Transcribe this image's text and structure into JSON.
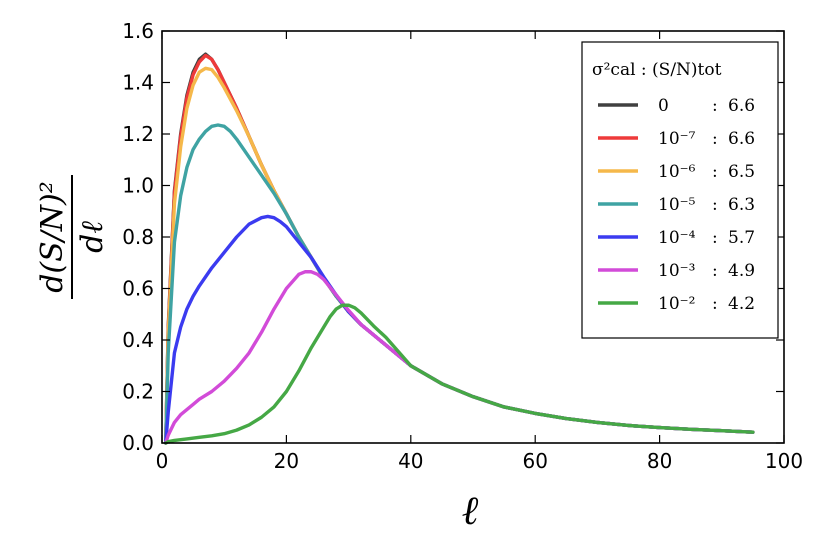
{
  "chart_data": {
    "type": "line",
    "xlabel": "ℓ",
    "ylabel_num": "d(S/N)²",
    "ylabel_den": "dℓ",
    "xlim": [
      0,
      100
    ],
    "ylim": [
      0,
      1.6
    ],
    "xticks": [
      0,
      20,
      40,
      60,
      80,
      100
    ],
    "yticks": [
      0.0,
      0.2,
      0.4,
      0.6,
      0.8,
      1.0,
      1.2,
      1.4,
      1.6
    ],
    "xtick_labels": [
      "0",
      "20",
      "40",
      "60",
      "80",
      "100"
    ],
    "ytick_labels": [
      "0.0",
      "0.2",
      "0.4",
      "0.6",
      "0.8",
      "1.0",
      "1.2",
      "1.4",
      "1.6"
    ],
    "grid": false,
    "legend": {
      "placement": "top-right",
      "title": "σ²cal : (S/N)tot",
      "entries": [
        {
          "sigma": "0",
          "sep": ":",
          "value": "6.6",
          "color": "#404040"
        },
        {
          "sigma": "10⁻⁷",
          "sep": ":",
          "value": "6.6",
          "color": "#ee3a3a"
        },
        {
          "sigma": "10⁻⁶",
          "sep": ":",
          "value": "6.5",
          "color": "#f5b84a"
        },
        {
          "sigma": "10⁻⁵",
          "sep": ":",
          "value": "6.3",
          "color": "#3fa3a3"
        },
        {
          "sigma": "10⁻⁴",
          "sep": ":",
          "value": "5.7",
          "color": "#3b3bf0"
        },
        {
          "sigma": "10⁻³",
          "sep": ":",
          "value": "4.9",
          "color": "#d24bd8"
        },
        {
          "sigma": "10⁻²",
          "sep": ":",
          "value": "4.2",
          "color": "#45a845"
        }
      ]
    },
    "series": [
      {
        "name": "0",
        "color": "#404040",
        "x": [
          0.6,
          1,
          2,
          3,
          4,
          5,
          6,
          7,
          8,
          9,
          10,
          12,
          14,
          16,
          18,
          20,
          22,
          24,
          26,
          28,
          30,
          32,
          35,
          40,
          45,
          50,
          55,
          60,
          65,
          70,
          75,
          80,
          85,
          90,
          95
        ],
        "y": [
          0.0,
          0.45,
          0.98,
          1.2,
          1.35,
          1.44,
          1.49,
          1.51,
          1.49,
          1.45,
          1.4,
          1.3,
          1.19,
          1.08,
          0.98,
          0.89,
          0.8,
          0.72,
          0.64,
          0.57,
          0.51,
          0.46,
          0.4,
          0.3,
          0.23,
          0.18,
          0.14,
          0.115,
          0.095,
          0.08,
          0.068,
          0.06,
          0.053,
          0.048,
          0.042
        ]
      },
      {
        "name": "10⁻⁷",
        "color": "#ee3a3a",
        "x": [
          0.6,
          1,
          2,
          3,
          4,
          5,
          6,
          7,
          8,
          9,
          10,
          12,
          14,
          16,
          18,
          20,
          22,
          24,
          26,
          28,
          30,
          32,
          35,
          40,
          45,
          50,
          55,
          60,
          65,
          70,
          75,
          80,
          85,
          90,
          95
        ],
        "y": [
          0.0,
          0.44,
          0.97,
          1.19,
          1.34,
          1.43,
          1.48,
          1.505,
          1.49,
          1.45,
          1.4,
          1.3,
          1.19,
          1.08,
          0.98,
          0.89,
          0.8,
          0.72,
          0.64,
          0.57,
          0.51,
          0.46,
          0.4,
          0.3,
          0.23,
          0.18,
          0.14,
          0.115,
          0.095,
          0.08,
          0.068,
          0.06,
          0.053,
          0.048,
          0.042
        ]
      },
      {
        "name": "10⁻⁶",
        "color": "#f5b84a",
        "x": [
          0.6,
          1,
          2,
          3,
          4,
          5,
          6,
          7,
          8,
          9,
          10,
          12,
          14,
          16,
          18,
          20,
          22,
          24,
          26,
          28,
          30,
          32,
          35,
          40,
          45,
          50,
          55,
          60,
          65,
          70,
          75,
          80,
          85,
          90,
          95
        ],
        "y": [
          0.0,
          0.42,
          0.93,
          1.15,
          1.3,
          1.39,
          1.44,
          1.455,
          1.45,
          1.42,
          1.38,
          1.29,
          1.19,
          1.08,
          0.98,
          0.89,
          0.8,
          0.72,
          0.64,
          0.57,
          0.51,
          0.46,
          0.4,
          0.3,
          0.23,
          0.18,
          0.14,
          0.115,
          0.095,
          0.08,
          0.068,
          0.06,
          0.053,
          0.048,
          0.042
        ]
      },
      {
        "name": "10⁻⁵",
        "color": "#3fa3a3",
        "x": [
          0.6,
          1,
          2,
          3,
          4,
          5,
          6,
          7,
          8,
          9,
          10,
          11,
          12,
          14,
          16,
          18,
          20,
          22,
          24,
          26,
          28,
          30,
          32,
          35,
          40,
          45,
          50,
          55,
          60,
          65,
          70,
          75,
          80,
          85,
          90,
          95
        ],
        "y": [
          0.0,
          0.35,
          0.78,
          0.96,
          1.07,
          1.14,
          1.18,
          1.21,
          1.23,
          1.235,
          1.23,
          1.21,
          1.18,
          1.11,
          1.04,
          0.97,
          0.89,
          0.8,
          0.72,
          0.64,
          0.57,
          0.51,
          0.46,
          0.4,
          0.3,
          0.23,
          0.18,
          0.14,
          0.115,
          0.095,
          0.08,
          0.068,
          0.06,
          0.053,
          0.048,
          0.042
        ]
      },
      {
        "name": "10⁻⁴",
        "color": "#3b3bf0",
        "x": [
          0.6,
          1,
          2,
          3,
          4,
          5,
          6,
          8,
          10,
          12,
          14,
          16,
          17,
          18,
          19,
          20,
          22,
          24,
          26,
          28,
          30,
          32,
          35,
          40,
          45,
          50,
          55,
          60,
          65,
          70,
          75,
          80,
          85,
          90,
          95
        ],
        "y": [
          0.0,
          0.12,
          0.35,
          0.45,
          0.52,
          0.57,
          0.61,
          0.68,
          0.74,
          0.8,
          0.85,
          0.875,
          0.88,
          0.875,
          0.86,
          0.84,
          0.78,
          0.72,
          0.645,
          0.575,
          0.51,
          0.46,
          0.4,
          0.3,
          0.23,
          0.18,
          0.14,
          0.115,
          0.095,
          0.08,
          0.068,
          0.06,
          0.053,
          0.048,
          0.042
        ]
      },
      {
        "name": "10⁻³",
        "color": "#d24bd8",
        "x": [
          0.6,
          1,
          2,
          3,
          4,
          5,
          6,
          8,
          10,
          12,
          14,
          16,
          18,
          20,
          22,
          23,
          24,
          25,
          26,
          28,
          30,
          32,
          35,
          40,
          45,
          50,
          55,
          60,
          65,
          70,
          75,
          80,
          85,
          90,
          95
        ],
        "y": [
          0.0,
          0.03,
          0.08,
          0.11,
          0.13,
          0.15,
          0.17,
          0.2,
          0.24,
          0.29,
          0.35,
          0.43,
          0.52,
          0.6,
          0.655,
          0.665,
          0.665,
          0.655,
          0.635,
          0.575,
          0.515,
          0.46,
          0.4,
          0.3,
          0.23,
          0.18,
          0.14,
          0.115,
          0.095,
          0.08,
          0.068,
          0.06,
          0.053,
          0.048,
          0.042
        ]
      },
      {
        "name": "10⁻²",
        "color": "#45a845",
        "x": [
          0.6,
          1,
          2,
          4,
          6,
          8,
          10,
          12,
          14,
          16,
          18,
          20,
          22,
          24,
          26,
          27,
          28,
          29,
          30,
          31,
          32,
          34,
          36,
          40,
          45,
          50,
          55,
          60,
          65,
          70,
          75,
          80,
          85,
          90,
          95
        ],
        "y": [
          0.0,
          0.005,
          0.01,
          0.016,
          0.022,
          0.028,
          0.036,
          0.05,
          0.07,
          0.1,
          0.14,
          0.2,
          0.28,
          0.37,
          0.45,
          0.49,
          0.52,
          0.535,
          0.535,
          0.525,
          0.505,
          0.455,
          0.41,
          0.3,
          0.23,
          0.18,
          0.14,
          0.115,
          0.095,
          0.08,
          0.068,
          0.06,
          0.053,
          0.048,
          0.042
        ]
      }
    ]
  }
}
